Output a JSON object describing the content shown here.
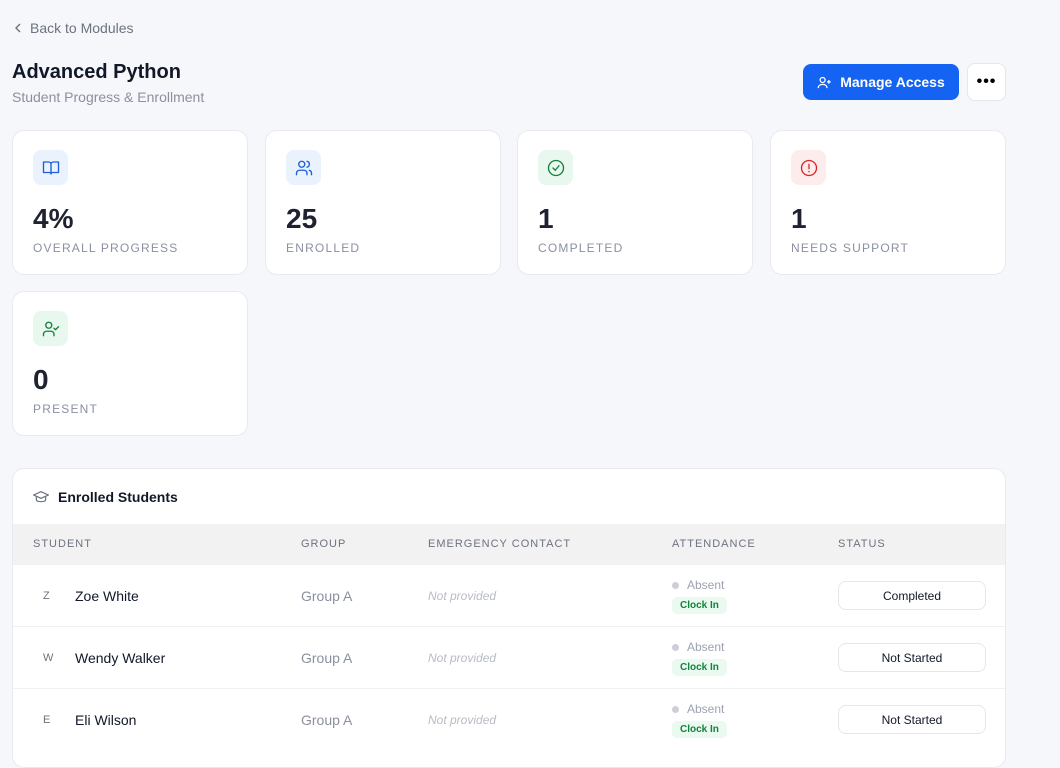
{
  "nav": {
    "back_label": "Back to Modules"
  },
  "header": {
    "title": "Advanced Python",
    "subtitle": "Student Progress & Enrollment",
    "manage_label": "Manage Access",
    "more_label": "•••"
  },
  "stats": [
    {
      "value": "4%",
      "label": "OVERALL PROGRESS",
      "icon": "book-open-icon",
      "color": "#1d5fd6",
      "bg": "#eaf2fe"
    },
    {
      "value": "25",
      "label": "ENROLLED",
      "icon": "users-icon",
      "color": "#1d5fd6",
      "bg": "#eaf2fe"
    },
    {
      "value": "1",
      "label": "COMPLETED",
      "icon": "check-circle-icon",
      "color": "#15803d",
      "bg": "#e8f8ef"
    },
    {
      "value": "1",
      "label": "NEEDS SUPPORT",
      "icon": "alert-circle-icon",
      "color": "#dc2626",
      "bg": "#fdecec"
    },
    {
      "value": "0",
      "label": "PRESENT",
      "icon": "user-check-icon",
      "color": "#15803d",
      "bg": "#e8f8ef"
    }
  ],
  "table": {
    "title": "Enrolled Students",
    "columns": [
      "STUDENT",
      "GROUP",
      "EMERGENCY CONTACT",
      "ATTENDANCE",
      "STATUS"
    ],
    "rows": [
      {
        "initial": "Z",
        "name": "Zoe White",
        "group": "Group A",
        "contact": "Not provided",
        "attendance": "Absent",
        "action": "Clock In",
        "status": "Completed"
      },
      {
        "initial": "W",
        "name": "Wendy Walker",
        "group": "Group A",
        "contact": "Not provided",
        "attendance": "Absent",
        "action": "Clock In",
        "status": "Not Started"
      },
      {
        "initial": "E",
        "name": "Eli Wilson",
        "group": "Group A",
        "contact": "Not provided",
        "attendance": "Absent",
        "action": "Clock In",
        "status": "Not Started"
      }
    ]
  }
}
